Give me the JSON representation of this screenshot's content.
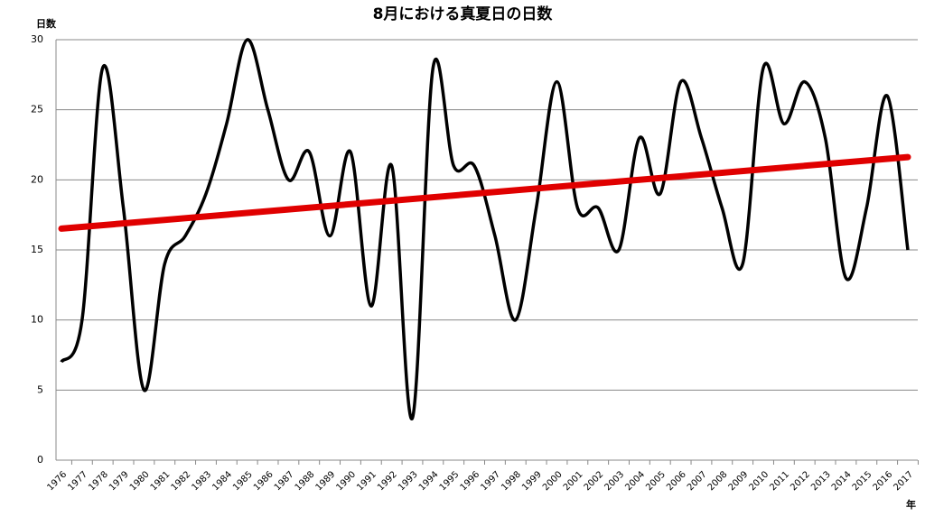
{
  "chart_data": {
    "type": "line",
    "title": "8月における真夏日の日数",
    "y_label": "日数",
    "x_label": "年",
    "categories": [
      "1976",
      "1977",
      "1978",
      "1979",
      "1980",
      "1981",
      "1982",
      "1983",
      "1984",
      "1985",
      "1986",
      "1987",
      "1988",
      "1989",
      "1990",
      "1991",
      "1992",
      "1993",
      "1994",
      "1995",
      "1996",
      "1997",
      "1998",
      "1999",
      "2000",
      "2001",
      "2002",
      "2003",
      "2004",
      "2005",
      "2006",
      "2007",
      "2008",
      "2009",
      "2010",
      "2011",
      "2012",
      "2013",
      "2014",
      "2015",
      "2016",
      "2017"
    ],
    "values": [
      7,
      10,
      28,
      18,
      5,
      14,
      16,
      19,
      24,
      30,
      25,
      20,
      22,
      16,
      22,
      11,
      21,
      3,
      28,
      21,
      21,
      16,
      10,
      18,
      27,
      18,
      18,
      15,
      23,
      19,
      27,
      23,
      18,
      14,
      28,
      24,
      27,
      23,
      13,
      18,
      26,
      15
    ],
    "color": "#000000",
    "smooth": true,
    "trendline": true,
    "trend_color": "#e00000",
    "ylim": [
      0,
      30
    ],
    "yticks": [
      0,
      5,
      10,
      15,
      20,
      25,
      30
    ],
    "grid": true
  }
}
